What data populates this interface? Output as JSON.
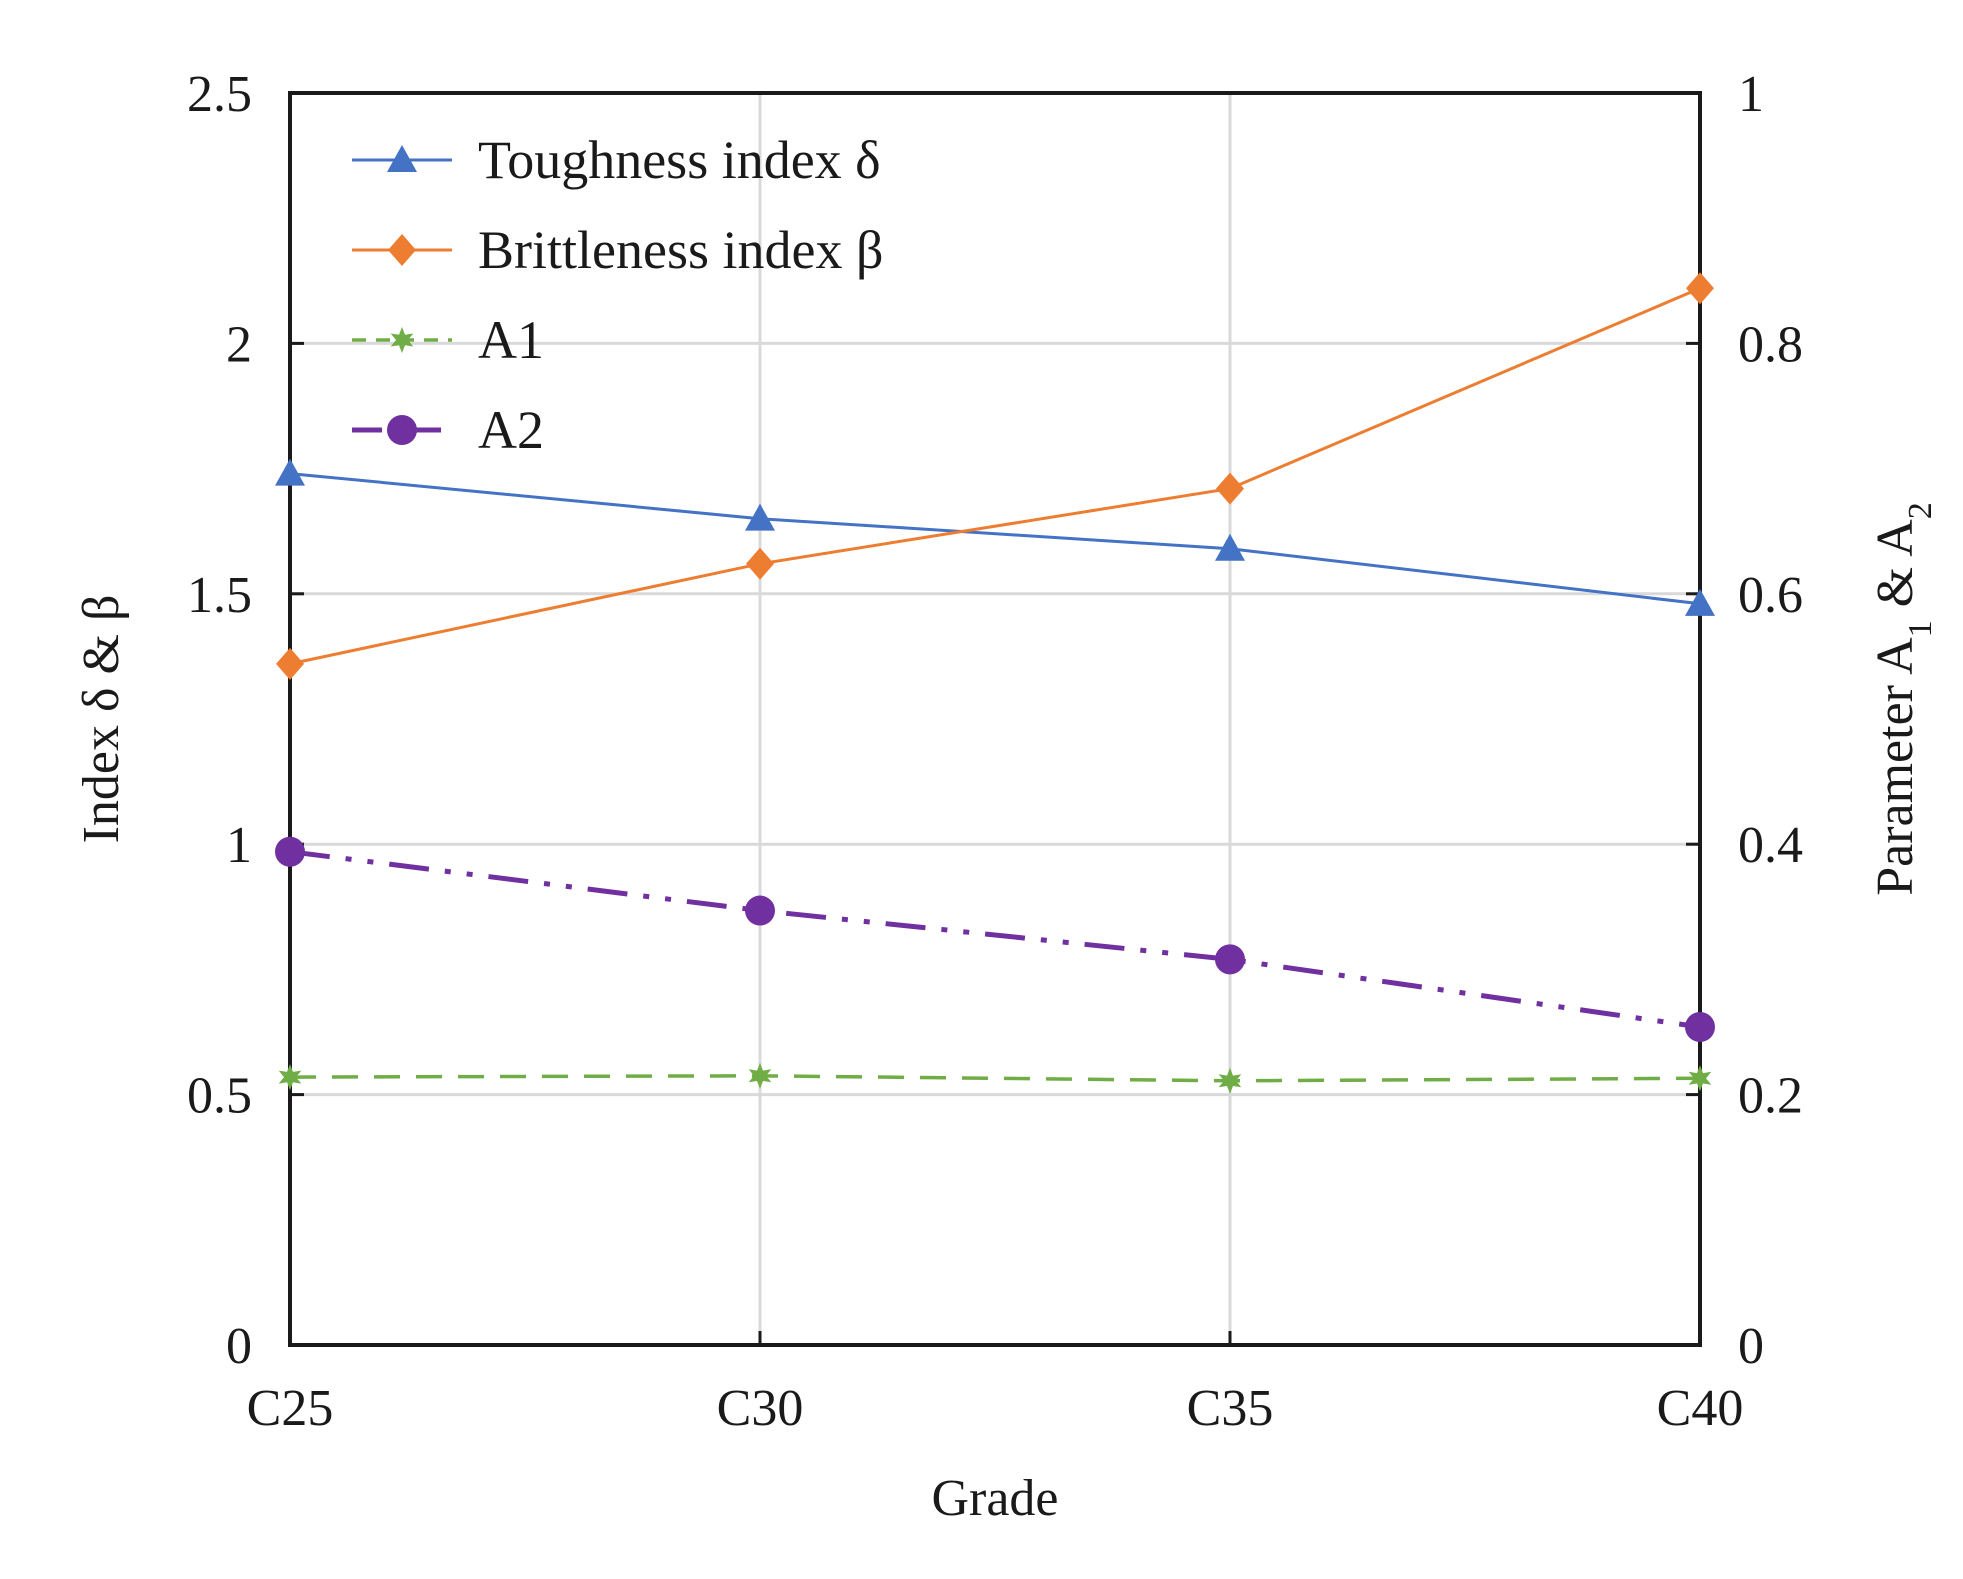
{
  "chart_data": {
    "type": "line",
    "title": "",
    "categories": [
      "C25",
      "C30",
      "C35",
      "C40"
    ],
    "xlabel": "Grade",
    "ylabel": "Index δ & β",
    "y2label": {
      "prefix": "Parameter A",
      "sub1": "1",
      "mid": " & A",
      "sub2": "2"
    },
    "ylim": [
      0,
      2.5
    ],
    "y2lim": [
      0,
      1
    ],
    "yticks": [
      "0",
      "0.5",
      "1",
      "1.5",
      "2",
      "2.5"
    ],
    "y2ticks": [
      "0",
      "0.2",
      "0.4",
      "0.6",
      "0.8",
      "1"
    ],
    "grid": true,
    "legend_position": "top-left",
    "series": [
      {
        "name": "Toughness index δ",
        "axis": "left",
        "color": "#4472c4",
        "marker": "triangle",
        "dash": "solid",
        "values": [
          1.74,
          1.65,
          1.59,
          1.48
        ]
      },
      {
        "name": "Brittleness index β",
        "axis": "left",
        "color": "#ed7d31",
        "marker": "diamond",
        "dash": "solid",
        "values": [
          1.36,
          1.56,
          1.71,
          2.11
        ]
      },
      {
        "name": "A1",
        "axis": "right",
        "color": "#70ad47",
        "marker": "star",
        "dash": "dashed",
        "values": [
          0.214,
          0.215,
          0.211,
          0.213
        ]
      },
      {
        "name": "A2",
        "axis": "right",
        "color": "#7030a0",
        "marker": "circle",
        "dash": "dashdotdot",
        "values": [
          0.394,
          0.347,
          0.308,
          0.254
        ]
      }
    ]
  }
}
